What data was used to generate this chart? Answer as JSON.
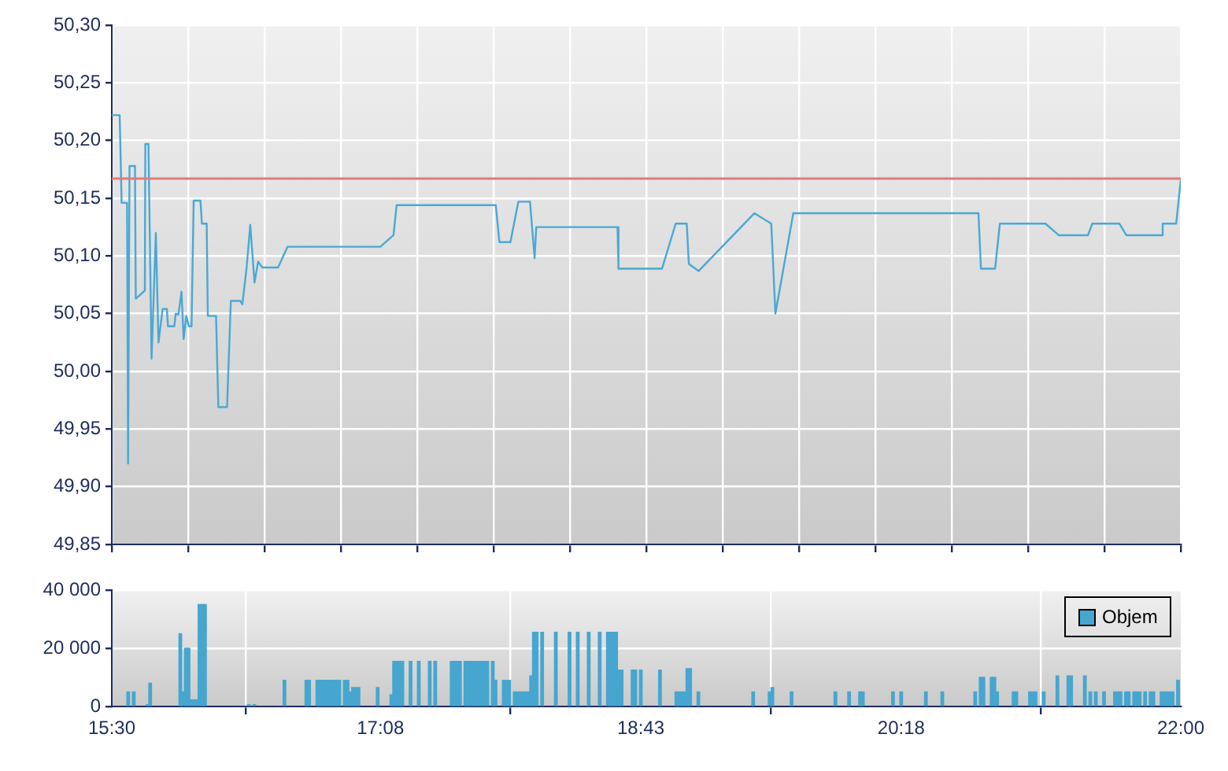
{
  "chart_data": [
    {
      "type": "line",
      "tick_labels": "y",
      "grid": true,
      "marker": "none",
      "line_style": "solid",
      "xlim": [
        15.5,
        22.0
      ],
      "xticks": [
        {
          "value": 15.5,
          "label": null
        },
        {
          "value": 15.9643,
          "label": null
        },
        {
          "value": 16.4286,
          "label": null
        },
        {
          "value": 16.8929,
          "label": null
        },
        {
          "value": 17.3571,
          "label": null
        },
        {
          "value": 17.8214,
          "label": null
        },
        {
          "value": 18.2857,
          "label": null
        },
        {
          "value": 18.75,
          "label": null
        },
        {
          "value": 19.2143,
          "label": null
        },
        {
          "value": 19.6786,
          "label": null
        },
        {
          "value": 20.1429,
          "label": null
        },
        {
          "value": 20.6071,
          "label": null
        },
        {
          "value": 21.0714,
          "label": null
        },
        {
          "value": 21.5357,
          "label": null
        },
        {
          "value": 22.0,
          "label": null
        }
      ],
      "ylim": [
        49.85,
        50.3
      ],
      "yticks": [
        {
          "value": 49.85,
          "label": "49,85"
        },
        {
          "value": 49.9,
          "label": "49,90"
        },
        {
          "value": 49.95,
          "label": "49,95"
        },
        {
          "value": 50.0,
          "label": "50,00"
        },
        {
          "value": 50.05,
          "label": "50,05"
        },
        {
          "value": 50.1,
          "label": "50,10"
        },
        {
          "value": 50.15,
          "label": "50,15"
        },
        {
          "value": 50.2,
          "label": "50,20"
        },
        {
          "value": 50.25,
          "label": "50,25"
        },
        {
          "value": 50.3,
          "label": "50,30"
        }
      ],
      "ref_lines": [
        {
          "axis": "y",
          "value": 50.167,
          "color": "#e07b7b"
        }
      ],
      "series": [
        {
          "color": "#4aa8d4",
          "x": [
            15.5,
            15.548,
            15.56,
            15.593,
            15.599,
            15.608,
            15.641,
            15.646,
            15.663,
            15.685,
            15.701,
            15.704,
            15.723,
            15.742,
            15.768,
            15.784,
            15.809,
            15.835,
            15.842,
            15.88,
            15.889,
            15.905,
            15.924,
            15.937,
            15.953,
            15.969,
            15.985,
            15.998,
            16.039,
            16.048,
            16.077,
            16.084,
            16.134,
            16.148,
            16.201,
            16.224,
            16.282,
            16.294,
            16.32,
            16.342,
            16.368,
            16.39,
            16.416,
            16.511,
            16.569,
            17.133,
            17.213,
            17.232,
            17.835,
            17.857,
            17.924,
            17.972,
            18.043,
            18.071,
            18.081,
            18.575,
            18.581,
            18.846,
            18.929,
            18.996,
            19.009,
            19.069,
            19.407,
            19.51,
            19.535,
            19.644,
            20.77,
            20.785,
            20.871,
            20.9,
            21.177,
            21.258,
            21.436,
            21.462,
            21.627,
            21.669,
            21.886,
            21.89,
            21.972,
            22.0
          ],
          "values": [
            50.222,
            50.222,
            50.146,
            50.146,
            49.92,
            50.178,
            50.178,
            50.063,
            50.065,
            50.068,
            50.07,
            50.197,
            50.197,
            50.011,
            50.12,
            50.025,
            50.054,
            50.054,
            50.039,
            50.039,
            50.05,
            50.049,
            50.069,
            50.028,
            50.048,
            50.039,
            50.039,
            50.148,
            50.148,
            50.128,
            50.128,
            50.048,
            50.048,
            49.969,
            49.969,
            50.061,
            50.061,
            50.058,
            50.09,
            50.127,
            50.077,
            50.095,
            50.09,
            50.09,
            50.108,
            50.108,
            50.118,
            50.144,
            50.144,
            50.112,
            50.112,
            50.147,
            50.147,
            50.098,
            50.125,
            50.125,
            50.089,
            50.089,
            50.128,
            50.128,
            50.093,
            50.087,
            50.137,
            50.128,
            50.05,
            50.137,
            50.137,
            50.089,
            50.089,
            50.128,
            50.128,
            50.118,
            50.118,
            50.128,
            50.128,
            50.118,
            50.118,
            50.128,
            50.128,
            50.166
          ]
        }
      ]
    },
    {
      "type": "bar",
      "grid": true,
      "legend": "top right",
      "xlim": [
        15.5,
        22.0
      ],
      "xticks": [
        {
          "value": 15.5,
          "label": "15:30"
        },
        {
          "value": 17.1333,
          "label": "17:08"
        },
        {
          "value": 18.7167,
          "label": "18:43"
        },
        {
          "value": 20.3,
          "label": "20:18"
        },
        {
          "value": 22.0,
          "label": "22:00"
        }
      ],
      "ylim": [
        0,
        40000
      ],
      "yticks": [
        {
          "value": 0,
          "label": "0"
        },
        {
          "value": 20000,
          "label": "20 000"
        },
        {
          "value": 40000,
          "label": "40 000"
        }
      ],
      "series": [
        {
          "name": "Objem",
          "color": "#46a6cf",
          "x": [
            15.6,
            15.6333,
            15.7167,
            15.7333,
            15.9167,
            15.9333,
            15.95,
            15.9667,
            15.9833,
            16.0,
            16.0167,
            16.0333,
            16.05,
            16.0667,
            16.3333,
            16.3667,
            16.55,
            16.6833,
            16.7,
            16.75,
            16.7667,
            16.7833,
            16.8,
            16.8167,
            16.8333,
            16.85,
            16.8667,
            16.8833,
            16.9167,
            16.9333,
            16.95,
            16.9667,
            16.9833,
            17.0,
            17.1167,
            17.2,
            17.2167,
            17.2333,
            17.25,
            17.2667,
            17.3167,
            17.3667,
            17.4333,
            17.4667,
            17.5667,
            17.5833,
            17.6,
            17.6167,
            17.65,
            17.6667,
            17.6833,
            17.7,
            17.7167,
            17.7333,
            17.75,
            17.7667,
            17.7833,
            17.8167,
            17.8333,
            17.8833,
            17.9,
            17.9167,
            17.95,
            17.9667,
            17.9833,
            18.0,
            18.0167,
            18.0333,
            18.05,
            18.0667,
            18.0833,
            18.1167,
            18.2,
            18.2833,
            18.3333,
            18.4,
            18.4667,
            18.5167,
            18.5333,
            18.55,
            18.5667,
            18.5833,
            18.6,
            18.6667,
            18.6833,
            18.7167,
            18.8333,
            18.9333,
            18.95,
            18.9667,
            18.9833,
            19.0,
            19.0167,
            19.0667,
            19.4,
            19.5,
            19.5167,
            19.6333,
            19.9,
            19.9833,
            20.05,
            20.0667,
            20.25,
            20.3,
            20.45,
            20.55,
            20.75,
            20.7833,
            20.8,
            20.85,
            20.8667,
            20.8833,
            20.9833,
            21.0,
            21.0833,
            21.1,
            21.1167,
            21.1667,
            21.25,
            21.3167,
            21.3333,
            21.4167,
            21.45,
            21.4833,
            21.5333,
            21.6,
            21.6167,
            21.6333,
            21.6667,
            21.6833,
            21.7167,
            21.7333,
            21.75,
            21.7833,
            21.8167,
            21.8333,
            21.8833,
            21.9,
            21.9167,
            21.9333,
            21.95,
            21.9833
          ],
          "values": [
            5000,
            5000,
            600,
            8000,
            25000,
            5000,
            20000,
            20000,
            2300,
            2300,
            2300,
            35000,
            35000,
            35000,
            600,
            600,
            9000,
            9000,
            9000,
            9000,
            9000,
            9000,
            9000,
            9000,
            9000,
            9000,
            9000,
            9000,
            9000,
            9000,
            5000,
            6500,
            6500,
            6500,
            6500,
            4000,
            15500,
            15500,
            15500,
            15500,
            15500,
            15500,
            15500,
            15500,
            15500,
            15500,
            15500,
            15500,
            15500,
            15500,
            15500,
            15500,
            15500,
            15500,
            15500,
            15500,
            15500,
            15500,
            9000,
            9000,
            9000,
            9000,
            5000,
            5000,
            5000,
            5000,
            5000,
            5000,
            10500,
            25500,
            25500,
            25500,
            25500,
            25500,
            25500,
            25500,
            25500,
            25500,
            25500,
            25500,
            25500,
            12500,
            12500,
            12500,
            12500,
            12500,
            12500,
            5000,
            5000,
            5000,
            5000,
            13000,
            13000,
            5000,
            5000,
            5000,
            6500,
            5000,
            5000,
            5000,
            5000,
            5000,
            5000,
            5000,
            5000,
            5000,
            5000,
            10000,
            10000,
            10000,
            10000,
            5000,
            5000,
            5000,
            5000,
            5000,
            5000,
            5000,
            10500,
            10500,
            10500,
            10500,
            5000,
            5000,
            5000,
            5000,
            5000,
            5000,
            5000,
            5000,
            5000,
            5000,
            5000,
            5000,
            5000,
            5000,
            5000,
            5000,
            5000,
            5000,
            5000,
            9000
          ]
        }
      ]
    }
  ]
}
